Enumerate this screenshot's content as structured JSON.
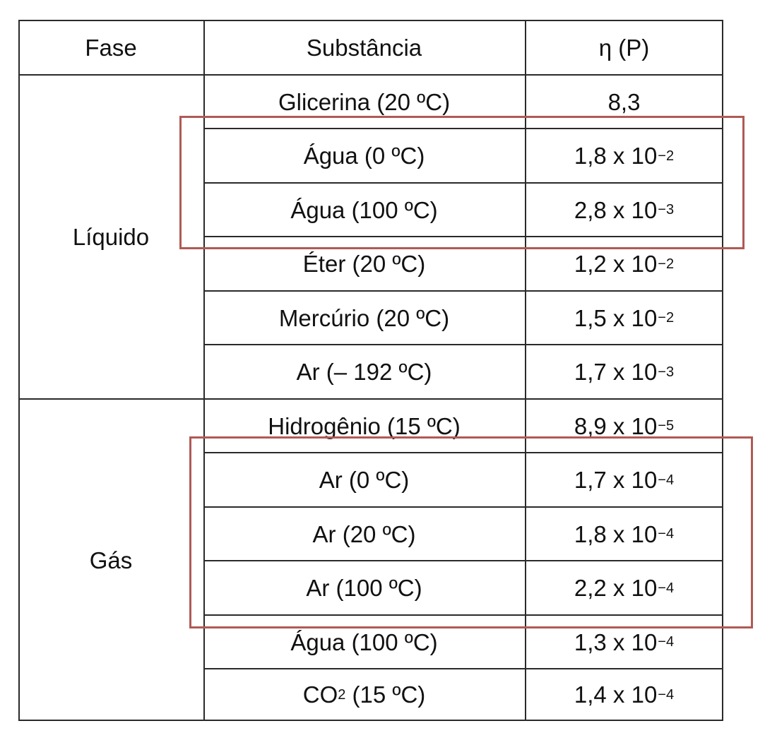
{
  "table": {
    "headers": {
      "phase": "Fase",
      "substance": "Substância",
      "viscosity": "η (P)"
    },
    "phases": [
      {
        "label": "Líquido"
      },
      {
        "label": "Gás"
      }
    ],
    "rows": [
      {
        "substance": "Glicerina (20 ºC)",
        "mantissa": "8,3",
        "exponent": ""
      },
      {
        "substance": "Água (0 ºC)",
        "mantissa": "1,8",
        "exponent": "−2"
      },
      {
        "substance": "Água (100 ºC)",
        "mantissa": "2,8",
        "exponent": "−3"
      },
      {
        "substance": "Éter (20 ºC)",
        "mantissa": "1,2",
        "exponent": "−2"
      },
      {
        "substance": "Mercúrio (20 ºC)",
        "mantissa": "1,5",
        "exponent": "−2"
      },
      {
        "substance": "Ar (– 192 ºC)",
        "mantissa": "1,7",
        "exponent": "−3"
      },
      {
        "substance": "Hidrogênio (15 ºC)",
        "mantissa": "8,9",
        "exponent": "−5"
      },
      {
        "substance": "Ar (0 ºC)",
        "mantissa": "1,7",
        "exponent": "−4"
      },
      {
        "substance": "Ar (20 ºC)",
        "mantissa": "1,8",
        "exponent": "−4"
      },
      {
        "substance": "Ar (100 ºC)",
        "mantissa": "2,2",
        "exponent": "−4"
      },
      {
        "substance": "Água (100 ºC)",
        "mantissa": "1,3",
        "exponent": "−4"
      },
      {
        "substance_main": "CO",
        "substance_sub": "2",
        "substance_rest": " (15 ºC)",
        "mantissa": "1,4",
        "exponent": "−4"
      }
    ],
    "times_sign": " x 10"
  },
  "highlight_color": "#b05a55"
}
